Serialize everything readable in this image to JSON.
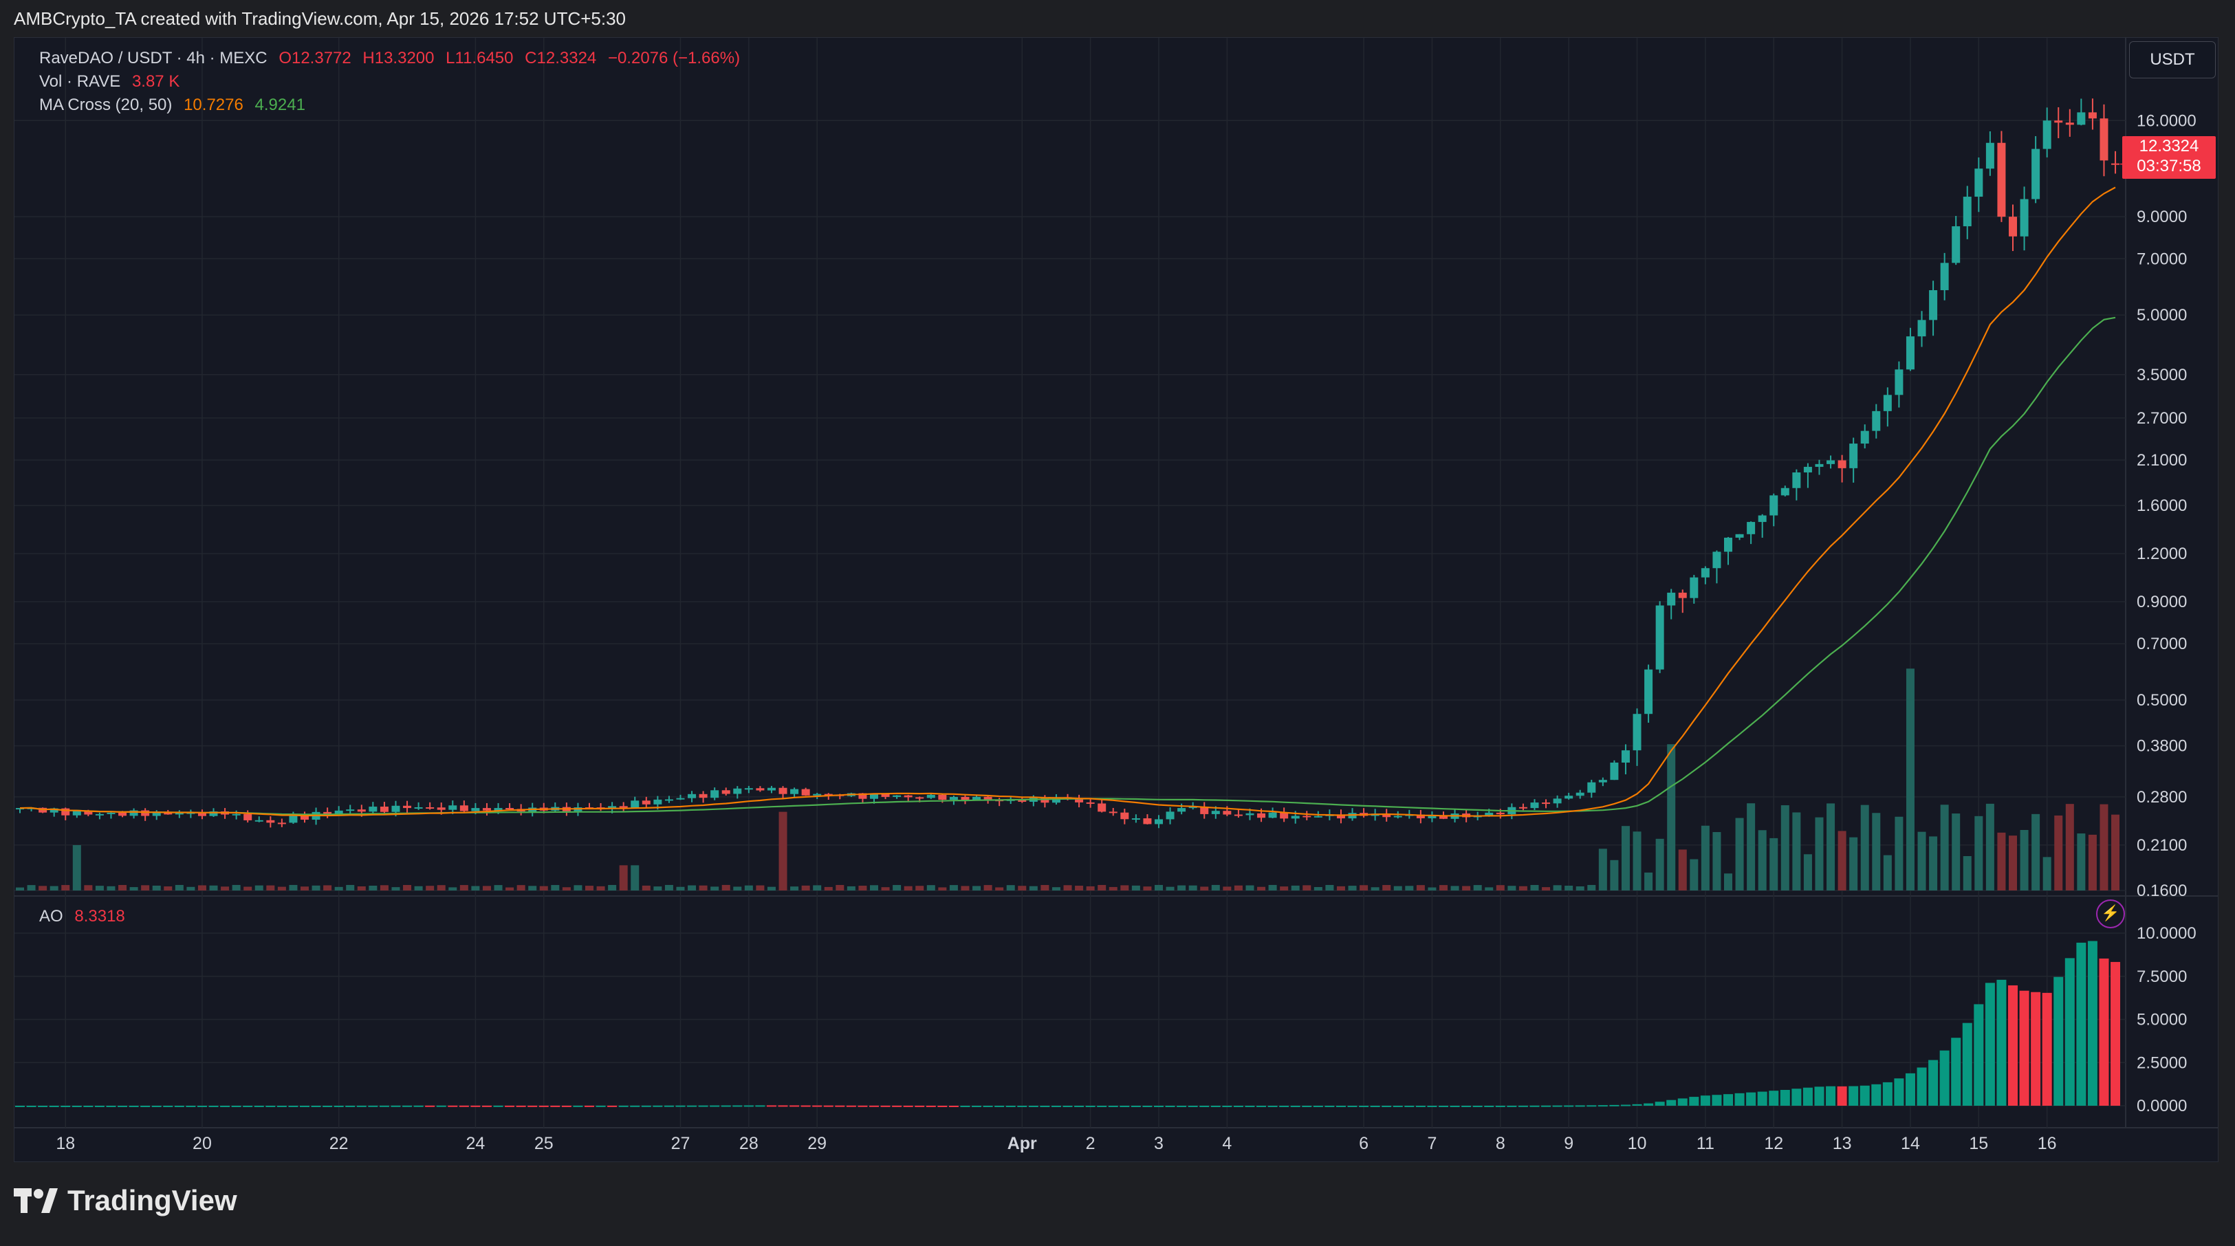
{
  "credit": "AMBCrypto_TA created with TradingView.com, Apr 15, 2026 17:52 UTC+5:30",
  "legend": {
    "symbol": "RaveDAO / USDT · 4h · MEXC",
    "open": "O12.3772",
    "high": "H13.3200",
    "low": "L11.6450",
    "close": "C12.3324",
    "change": "−0.2076 (−1.66%)",
    "vol_label": "Vol · RAVE",
    "vol_value": "3.87 K",
    "ma_label": "MA Cross (20, 50)",
    "ma_fast": "10.7276",
    "ma_slow": "4.9241",
    "ao_label": "AO",
    "ao_value": "8.3318"
  },
  "currency": "USDT",
  "price_tag": {
    "price": "12.3324",
    "countdown": "03:37:58"
  },
  "logo_text": "TradingView",
  "colors": {
    "up": "#26a69a",
    "down": "#ef5350",
    "ma_fast": "#f57c00",
    "ma_slow": "#4caf50",
    "ao_up": "#089981",
    "ao_down": "#f23645"
  },
  "chart_data": {
    "type": "candlestick",
    "title": "RaveDAO / USDT · 4h · MEXC",
    "price_axis": {
      "scale": "log",
      "ticks": [
        "16.0000",
        "9.0000",
        "7.0000",
        "5.0000",
        "3.5000",
        "2.7000",
        "2.1000",
        "1.6000",
        "1.2000",
        "0.9000",
        "0.7000",
        "0.5000",
        "0.3800",
        "0.2800",
        "0.2100",
        "0.1600"
      ],
      "range": [
        0.16,
        20.5
      ]
    },
    "ao_axis": {
      "ticks": [
        "10.0000",
        "7.5000",
        "5.0000",
        "2.5000",
        "0.0000"
      ],
      "range": [
        0,
        10.6
      ]
    },
    "time_axis": [
      {
        "label": "18",
        "index": 4
      },
      {
        "label": "20",
        "index": 16
      },
      {
        "label": "22",
        "index": 28
      },
      {
        "label": "24",
        "index": 40
      },
      {
        "label": "25",
        "index": 46
      },
      {
        "label": "27",
        "index": 58
      },
      {
        "label": "28",
        "index": 64
      },
      {
        "label": "29",
        "index": 70
      },
      {
        "label": "Apr",
        "index": 88,
        "bold": true
      },
      {
        "label": "2",
        "index": 94
      },
      {
        "label": "3",
        "index": 100
      },
      {
        "label": "4",
        "index": 106
      },
      {
        "label": "6",
        "index": 118
      },
      {
        "label": "7",
        "index": 124
      },
      {
        "label": "8",
        "index": 130
      },
      {
        "label": "9",
        "index": 136
      },
      {
        "label": "10",
        "index": 142
      },
      {
        "label": "11",
        "index": 148
      },
      {
        "label": "12",
        "index": 154
      },
      {
        "label": "13",
        "index": 160
      },
      {
        "label": "14",
        "index": 166
      },
      {
        "label": "15",
        "index": 172
      },
      {
        "label": "16",
        "index": 178
      }
    ],
    "close_anchors": [
      [
        0,
        0.262
      ],
      [
        6,
        0.252
      ],
      [
        12,
        0.255
      ],
      [
        18,
        0.252
      ],
      [
        22,
        0.24
      ],
      [
        28,
        0.258
      ],
      [
        34,
        0.262
      ],
      [
        40,
        0.262
      ],
      [
        46,
        0.258
      ],
      [
        52,
        0.265
      ],
      [
        58,
        0.278
      ],
      [
        64,
        0.295
      ],
      [
        70,
        0.285
      ],
      [
        76,
        0.28
      ],
      [
        82,
        0.28
      ],
      [
        88,
        0.272
      ],
      [
        92,
        0.278
      ],
      [
        96,
        0.255
      ],
      [
        99,
        0.238
      ],
      [
        102,
        0.262
      ],
      [
        106,
        0.252
      ],
      [
        112,
        0.25
      ],
      [
        118,
        0.25
      ],
      [
        124,
        0.25
      ],
      [
        128,
        0.25
      ],
      [
        132,
        0.262
      ],
      [
        136,
        0.282
      ],
      [
        139,
        0.31
      ],
      [
        141,
        0.37
      ],
      [
        142,
        0.46
      ],
      [
        143,
        0.6
      ],
      [
        144,
        0.88
      ],
      [
        145,
        0.95
      ],
      [
        146,
        0.92
      ],
      [
        148,
        1.1
      ],
      [
        150,
        1.32
      ],
      [
        152,
        1.45
      ],
      [
        154,
        1.7
      ],
      [
        156,
        1.95
      ],
      [
        158,
        2.05
      ],
      [
        160,
        2.0
      ],
      [
        162,
        2.5
      ],
      [
        164,
        3.1
      ],
      [
        166,
        4.4
      ],
      [
        168,
        5.8
      ],
      [
        170,
        8.5
      ],
      [
        172,
        12.0
      ],
      [
        173,
        14.0
      ],
      [
        174,
        9.0
      ],
      [
        175,
        8.0
      ],
      [
        176,
        10.0
      ],
      [
        177,
        13.5
      ],
      [
        178,
        16.0
      ],
      [
        179,
        15.8
      ],
      [
        180,
        15.6
      ],
      [
        181,
        16.8
      ],
      [
        182,
        16.2
      ],
      [
        183,
        12.6
      ],
      [
        184,
        12.3324
      ]
    ],
    "last_candle": {
      "open": 12.3772,
      "high": 13.32,
      "low": 11.645,
      "close": 12.3324
    },
    "ma_fast_last": 10.7276,
    "ma_slow_last": 4.9241,
    "volume_last": 3870,
    "ao_last": 8.3318
  }
}
